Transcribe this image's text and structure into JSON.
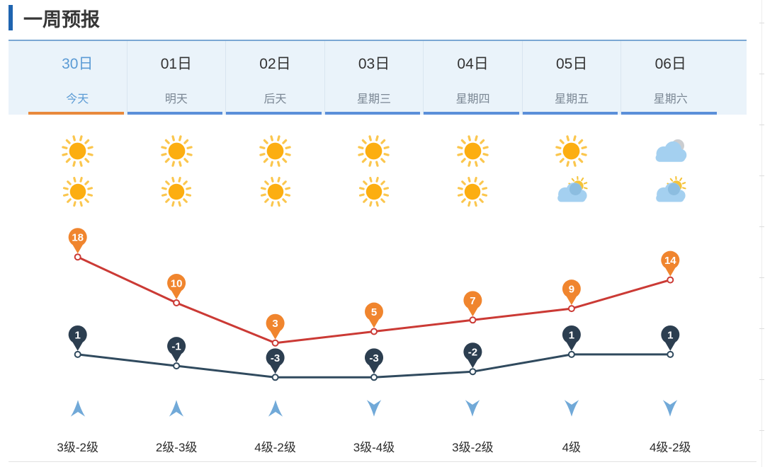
{
  "title": "一周预报",
  "theme": {
    "accent_bar_blue": "#1f64b0",
    "tab_underline_blue": "#5b8fd9",
    "today_underline_orange": "#e8893c",
    "today_text_blue": "#5b9bd5",
    "header_bg": "#eaf3fa",
    "high_line_red": "#cb3a35",
    "high_marker_orange": "#f0852e",
    "low_line_navy": "#304a5e",
    "low_marker_navy": "#2c3e50",
    "wind_arrow_blue": "#71a9d8",
    "sun_yellow": "#fcae11",
    "cloud_blue": "#a4d0f0"
  },
  "days": [
    {
      "date": "30日",
      "day": "今天",
      "active": true,
      "day_icon": "sunny",
      "night_icon": "sunny",
      "wind_direction": "up",
      "wind_level": "3级-2级",
      "high": 18,
      "low": 1
    },
    {
      "date": "01日",
      "day": "明天",
      "active": false,
      "day_icon": "sunny",
      "night_icon": "sunny",
      "wind_direction": "up",
      "wind_level": "2级-3级",
      "high": 10,
      "low": -1
    },
    {
      "date": "02日",
      "day": "后天",
      "active": false,
      "day_icon": "sunny",
      "night_icon": "sunny",
      "wind_direction": "up",
      "wind_level": "4级-2级",
      "high": 3,
      "low": -3
    },
    {
      "date": "03日",
      "day": "星期三",
      "active": false,
      "day_icon": "sunny",
      "night_icon": "sunny",
      "wind_direction": "down",
      "wind_level": "3级-4级",
      "high": 5,
      "low": -3
    },
    {
      "date": "04日",
      "day": "星期四",
      "active": false,
      "day_icon": "sunny",
      "night_icon": "sunny",
      "wind_direction": "down",
      "wind_level": "3级-2级",
      "high": 7,
      "low": -2
    },
    {
      "date": "05日",
      "day": "星期五",
      "active": false,
      "day_icon": "sunny",
      "night_icon": "partly-cloudy",
      "wind_direction": "down",
      "wind_level": "4级",
      "high": 9,
      "low": 1
    },
    {
      "date": "06日",
      "day": "星期六",
      "active": false,
      "day_icon": "cloudy",
      "night_icon": "partly-cloudy",
      "wind_direction": "down",
      "wind_level": "4级-2级",
      "high": 14,
      "low": 1
    }
  ],
  "chart_data": {
    "type": "line",
    "categories": [
      "30日",
      "01日",
      "02日",
      "03日",
      "04日",
      "05日",
      "06日"
    ],
    "series": [
      {
        "name": "high",
        "values": [
          18,
          10,
          3,
          5,
          7,
          9,
          14
        ],
        "line_color": "#cb3a35",
        "marker_color": "#f0852e"
      },
      {
        "name": "low",
        "values": [
          1,
          -1,
          -3,
          -3,
          -2,
          1,
          1
        ],
        "line_color": "#304a5e",
        "marker_color": "#2c3e50"
      }
    ],
    "value_labels": "pin-above-each-point",
    "ylim": [
      -6,
      22
    ],
    "grid": false,
    "legend": "none"
  }
}
